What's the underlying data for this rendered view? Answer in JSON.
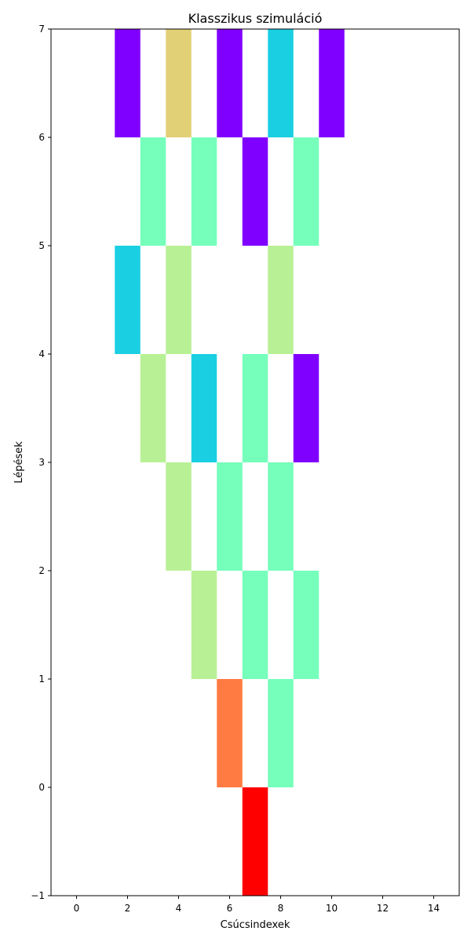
{
  "chart_data": {
    "type": "heatmap",
    "title": "Klasszikus szimuláció",
    "xlabel": "Csúcsindexek",
    "ylabel": "Lépések",
    "xlim": [
      -1,
      15
    ],
    "ylim": [
      -1,
      7
    ],
    "x_ticks": [
      0,
      2,
      4,
      6,
      8,
      10,
      12,
      14
    ],
    "y_ticks": [
      -1,
      0,
      1,
      2,
      3,
      4,
      5,
      6,
      7
    ],
    "x_tick_labels": [
      "0",
      "2",
      "4",
      "6",
      "8",
      "10",
      "12",
      "14"
    ],
    "y_tick_labels": [
      "−1",
      "0",
      "1",
      "2",
      "3",
      "4",
      "5",
      "6",
      "7"
    ],
    "grid": false,
    "legend": "none",
    "colormap": "rainbow",
    "cells": [
      {
        "x": 7,
        "y": -1,
        "color": "#ff0000"
      },
      {
        "x": 6,
        "y": 0,
        "color": "#ff7b41"
      },
      {
        "x": 8,
        "y": 0,
        "color": "#75ffbb"
      },
      {
        "x": 5,
        "y": 1,
        "color": "#b8f195"
      },
      {
        "x": 7,
        "y": 1,
        "color": "#75ffbb"
      },
      {
        "x": 9,
        "y": 1,
        "color": "#75ffbb"
      },
      {
        "x": 4,
        "y": 2,
        "color": "#b8f195"
      },
      {
        "x": 6,
        "y": 2,
        "color": "#75ffbb"
      },
      {
        "x": 8,
        "y": 2,
        "color": "#75ffbb"
      },
      {
        "x": 3,
        "y": 3,
        "color": "#b8f195"
      },
      {
        "x": 5,
        "y": 3,
        "color": "#1acfe2"
      },
      {
        "x": 7,
        "y": 3,
        "color": "#75ffbb"
      },
      {
        "x": 9,
        "y": 3,
        "color": "#8000ff"
      },
      {
        "x": 2,
        "y": 4,
        "color": "#1acfe2"
      },
      {
        "x": 4,
        "y": 4,
        "color": "#b8f195"
      },
      {
        "x": 8,
        "y": 4,
        "color": "#b8f195"
      },
      {
        "x": 3,
        "y": 5,
        "color": "#75ffbb"
      },
      {
        "x": 5,
        "y": 5,
        "color": "#75ffbb"
      },
      {
        "x": 7,
        "y": 5,
        "color": "#8000ff"
      },
      {
        "x": 9,
        "y": 5,
        "color": "#75ffbb"
      },
      {
        "x": 2,
        "y": 6,
        "color": "#8000ff"
      },
      {
        "x": 4,
        "y": 6,
        "color": "#e2d077"
      },
      {
        "x": 6,
        "y": 6,
        "color": "#8000ff"
      },
      {
        "x": 8,
        "y": 6,
        "color": "#1acfe2"
      },
      {
        "x": 10,
        "y": 6,
        "color": "#8000ff"
      }
    ]
  }
}
